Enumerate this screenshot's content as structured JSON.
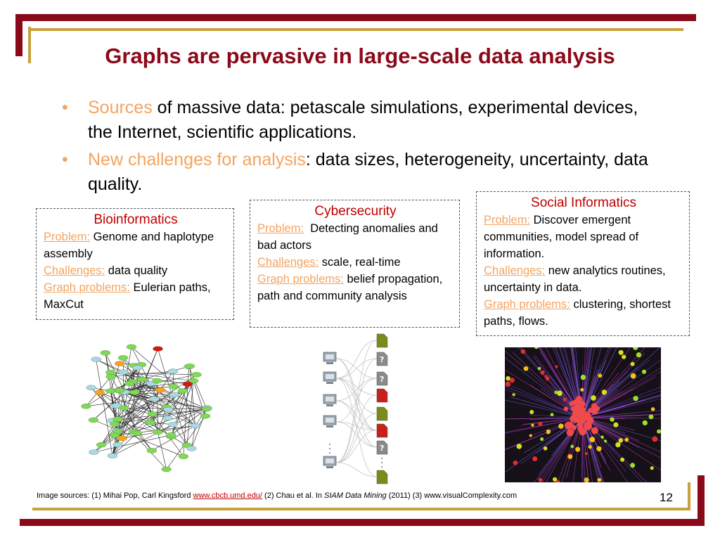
{
  "title": "Graphs are pervasive in large-scale data analysis",
  "bullets": [
    {
      "highlight": "Sources",
      "rest": " of massive data: petascale simulations, experimental devices, the Internet, scientific applications."
    },
    {
      "highlight": "New challenges for analysis",
      "rest": ": data sizes, heterogeneity, uncertainty, data quality."
    }
  ],
  "boxes": {
    "bio": {
      "title": "Bioinformatics",
      "problem_label": "Problem:",
      "problem": " Genome and haplotype assembly",
      "challenges_label": "Challenges:",
      "challenges": " data quality",
      "graph_label": "Graph problems:",
      "graph": " Eulerian paths, MaxCut"
    },
    "cyber": {
      "title": "Cybersecurity",
      "problem_label": "Problem:",
      "problem": "  Detecting anomalies and bad actors",
      "challenges_label": "Challenges:",
      "challenges": " scale, real-time",
      "graph_label": "Graph problems:",
      "graph": " belief propagation, path and community analysis"
    },
    "social": {
      "title": "Social Informatics",
      "problem_label": "Problem:",
      "problem": " Discover emergent communities, model spread of information.",
      "challenges_label": "Challenges:",
      "challenges": " new analytics routines, uncertainty in data.",
      "graph_label": "Graph problems:",
      "graph": " clustering, shortest paths, flows."
    }
  },
  "footer": {
    "pre": "Image sources: (1) Mihai Pop, Carl Kingsford ",
    "link": "www.cbcb.umd.edu/",
    "mid": " (2) Chau et al. In ",
    "venue": "SIAM Data Mining",
    "post": " (2011) (3) www.visualComplexity.com"
  },
  "page_number": "12",
  "colors": {
    "title": "#8b0a1a",
    "frame_red": "#8b0a1a",
    "frame_gold": "#c8a03c",
    "highlight": "#f4a460",
    "box_title": "#c00000"
  },
  "images": [
    {
      "name": "genome-assembly-graph",
      "depicts": "network graph of green and blue nodes with red and orange highlighted nodes"
    },
    {
      "name": "computers-files-bipartite-graph",
      "depicts": "computers connected to file icons, some marked with question marks"
    },
    {
      "name": "social-network-starburst",
      "depicts": "radial network with red core and colored nodes on dark background"
    }
  ]
}
